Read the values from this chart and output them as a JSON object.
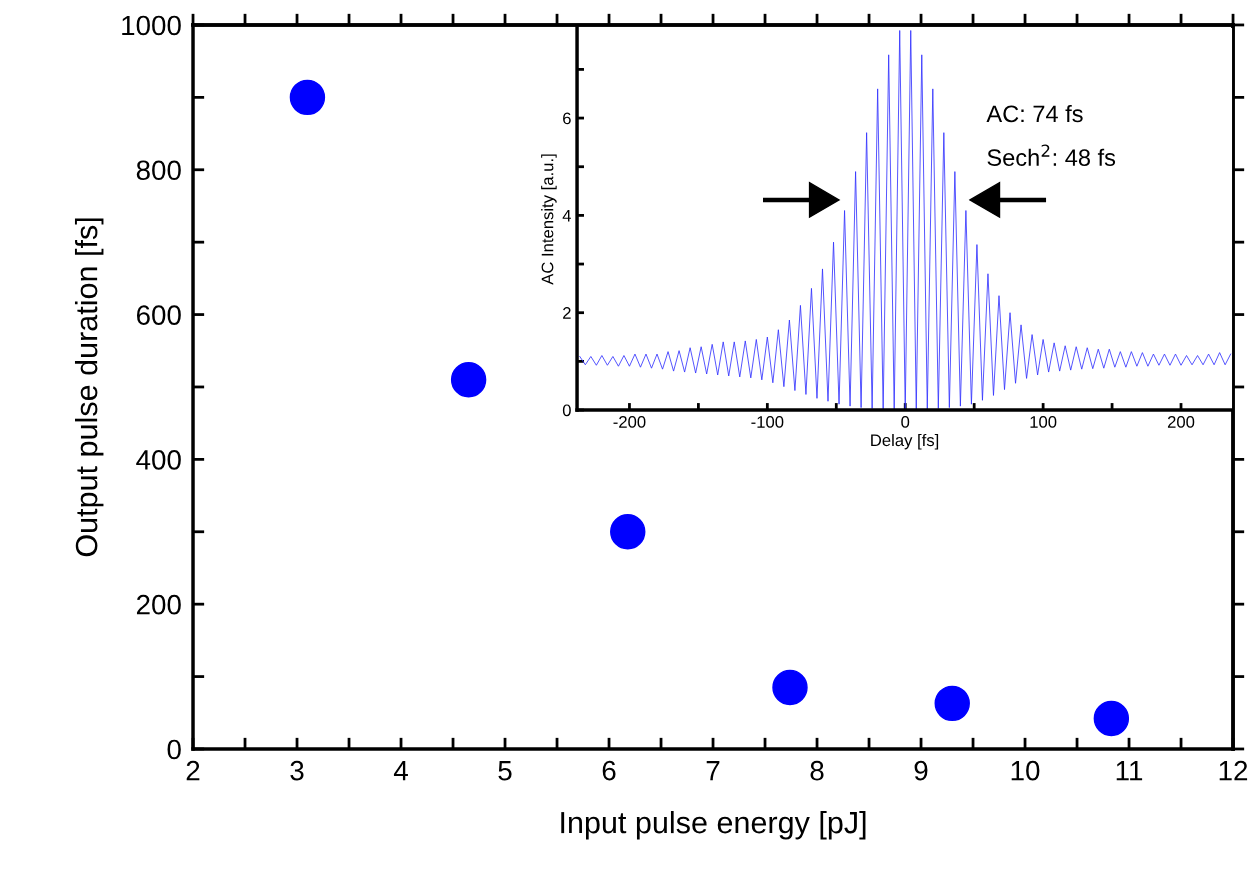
{
  "chart_data": [
    {
      "type": "scatter",
      "xlabel": "Input pulse energy [pJ]",
      "ylabel": "Output pulse duration [fs]",
      "x": [
        3.1,
        4.65,
        6.18,
        7.74,
        9.3,
        10.83
      ],
      "series": [
        {
          "color": "#0000ff",
          "values": [
            900,
            510,
            300,
            85,
            63,
            42
          ]
        }
      ],
      "marker": "circle",
      "grid": false,
      "legend": false,
      "xlim": [
        2,
        12
      ],
      "ylim": [
        0,
        1000
      ],
      "xticks": [
        2,
        {
          "value": 2.5,
          "label": null
        },
        3,
        {
          "value": 3.5,
          "label": null
        },
        4,
        {
          "value": 4.5,
          "label": null
        },
        5,
        {
          "value": 5.5,
          "label": null
        },
        6,
        {
          "value": 6.5,
          "label": null
        },
        7,
        {
          "value": 7.5,
          "label": null
        },
        8,
        {
          "value": 8.5,
          "label": null
        },
        9,
        {
          "value": 9.5,
          "label": null
        },
        10,
        {
          "value": 10.5,
          "label": null
        },
        11,
        {
          "value": 11.5,
          "label": null
        },
        12
      ],
      "yticks": [
        0,
        {
          "value": 100,
          "label": null
        },
        200,
        {
          "value": 300,
          "label": null
        },
        400,
        {
          "value": 500,
          "label": null
        },
        600,
        {
          "value": 700,
          "label": null
        },
        800,
        {
          "value": 900,
          "label": null
        },
        1000
      ]
    },
    {
      "type": "line",
      "xlabel": "Delay [fs]",
      "ylabel": "AC Intensity [a.u.]",
      "annotations": [
        "AC: 74 fs",
        "Sech$^{2}$: 48 fs"
      ],
      "x": [
        -236,
        -232,
        -228,
        -224,
        -220,
        -216,
        -212,
        -208,
        -204,
        -200,
        -196,
        -192,
        -188,
        -184,
        -180,
        -176,
        -172,
        -168,
        -164,
        -160,
        -156,
        -152,
        -148,
        -144,
        -140,
        -136,
        -132,
        -128,
        -124,
        -120,
        -116,
        -112,
        -108,
        -104,
        -100,
        -96,
        -92,
        -88,
        -84,
        -80,
        -76,
        -72,
        -68,
        -64,
        -60,
        -56,
        -52,
        -48,
        -44,
        -40,
        -36,
        -32,
        -28,
        -24,
        -20,
        -16,
        -12,
        -8,
        -4,
        0,
        4,
        8,
        12,
        16,
        20,
        24,
        28,
        32,
        36,
        40,
        44,
        48,
        52,
        56,
        60,
        64,
        68,
        72,
        76,
        80,
        84,
        88,
        92,
        96,
        100,
        104,
        108,
        112,
        116,
        120,
        124,
        128,
        132,
        136,
        140,
        144,
        148,
        152,
        156,
        160,
        164,
        168,
        172,
        176,
        180,
        184,
        188,
        192,
        196,
        200,
        204,
        208,
        212,
        216,
        220,
        224,
        228,
        232,
        236
      ],
      "series": [
        {
          "color": "#3333ff",
          "values": [
            1.1,
            0.93,
            1.1,
            0.92,
            1.12,
            0.92,
            1.1,
            0.9,
            1.12,
            0.9,
            1.15,
            0.88,
            1.15,
            0.86,
            1.15,
            0.84,
            1.2,
            0.8,
            1.22,
            0.78,
            1.28,
            0.76,
            1.3,
            0.74,
            1.35,
            0.72,
            1.4,
            0.7,
            1.4,
            0.68,
            1.42,
            0.66,
            1.45,
            0.62,
            1.5,
            0.56,
            1.65,
            0.48,
            1.85,
            0.4,
            2.15,
            0.32,
            2.5,
            0.24,
            2.9,
            0.18,
            3.45,
            0.12,
            4.1,
            0.08,
            4.9,
            0.05,
            5.7,
            0.03,
            6.6,
            0.02,
            7.3,
            0.01,
            7.8,
            0,
            7.8,
            0.01,
            7.3,
            0.02,
            6.6,
            0.03,
            5.7,
            0.05,
            4.9,
            0.08,
            4.1,
            0.12,
            3.4,
            0.2,
            2.8,
            0.3,
            2.35,
            0.42,
            2.0,
            0.55,
            1.75,
            0.65,
            1.55,
            0.72,
            1.45,
            0.78,
            1.38,
            0.8,
            1.32,
            0.82,
            1.3,
            0.84,
            1.28,
            0.85,
            1.25,
            0.86,
            1.25,
            0.88,
            1.2,
            0.88,
            1.2,
            0.9,
            1.18,
            0.9,
            1.15,
            0.92,
            1.15,
            0.92,
            1.15,
            0.92,
            1.12,
            0.93,
            1.12,
            0.93,
            1.15,
            0.93,
            1.18,
            0.93,
            1.15
          ]
        }
      ],
      "marker": "none",
      "line_style": "solid",
      "grid": false,
      "legend": false,
      "xlim": [
        -238,
        237
      ],
      "ylim": [
        0,
        7.85
      ],
      "xticks": [
        -200,
        {
          "value": -150,
          "label": null
        },
        -100,
        {
          "value": -50,
          "label": null
        },
        0,
        {
          "value": 50,
          "label": null
        },
        100,
        {
          "value": 150,
          "label": null
        },
        200
      ],
      "yticks": [
        0,
        {
          "value": 1,
          "label": null
        },
        2,
        {
          "value": 3,
          "label": null
        },
        4,
        {
          "value": 5,
          "label": null
        },
        6,
        {
          "value": 7,
          "label": null
        }
      ]
    }
  ]
}
